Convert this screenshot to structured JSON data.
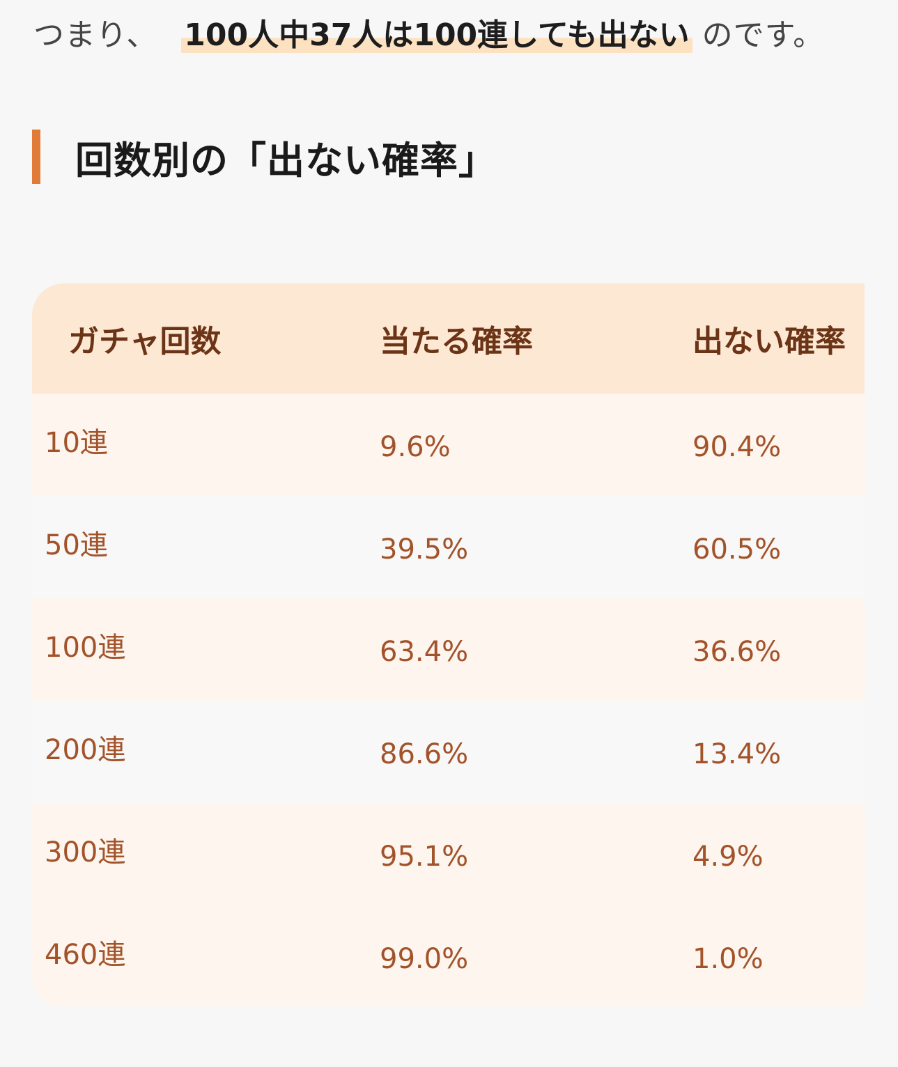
{
  "intro": {
    "prefix": "つまり、",
    "highlight": "100人中37人は100連しても出ない",
    "suffix": "のです。"
  },
  "heading": {
    "title": "回数別の「出ない確率」"
  },
  "table": {
    "headers": [
      "ガチャ回数",
      "当たる確率",
      "出ない確率"
    ],
    "rows": [
      [
        "10連",
        "9.6%",
        "90.4%"
      ],
      [
        "50連",
        "39.5%",
        "60.5%"
      ],
      [
        "100連",
        "63.4%",
        "36.6%"
      ],
      [
        "200連",
        "86.6%",
        "13.4%"
      ],
      [
        "300連",
        "95.1%",
        "4.9%"
      ],
      [
        "460連",
        "99.0%",
        "1.0%"
      ]
    ]
  },
  "colors": {
    "accent": "#e07b39",
    "highlight": "#fde2c2",
    "header_bg": "#fde8d4",
    "header_text": "#6b3416",
    "cell_text": "#a3532a"
  }
}
